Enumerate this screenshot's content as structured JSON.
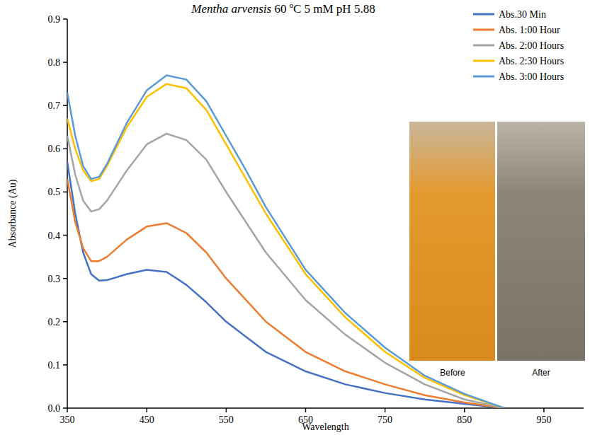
{
  "chart_data": {
    "type": "line",
    "title": "Mentha arvensis 60 ºC 5 mM pH 5.88",
    "x_label": "Wavelength",
    "y_label": "Absorbance (Au)",
    "annotations": [
      "Before",
      "After"
    ],
    "x": [
      350,
      360,
      370,
      380,
      390,
      400,
      425,
      450,
      475,
      500,
      525,
      550,
      575,
      600,
      650,
      700,
      750,
      800,
      850,
      900
    ],
    "series": [
      {
        "name": "Abs.30 Min",
        "color": "#4472c4",
        "values": [
          0.57,
          0.45,
          0.36,
          0.31,
          0.295,
          0.296,
          0.31,
          0.32,
          0.315,
          0.285,
          0.245,
          0.2,
          0.165,
          0.13,
          0.085,
          0.055,
          0.035,
          0.02,
          0.01,
          0
        ]
      },
      {
        "name": "Abs. 1:00 Hour",
        "color": "#ed7d31",
        "values": [
          0.53,
          0.43,
          0.37,
          0.34,
          0.34,
          0.35,
          0.39,
          0.42,
          0.428,
          0.405,
          0.36,
          0.3,
          0.25,
          0.2,
          0.13,
          0.085,
          0.055,
          0.03,
          0.013,
          0
        ]
      },
      {
        "name": "Abs. 2:00 Hours",
        "color": "#a5a5a5",
        "values": [
          0.63,
          0.54,
          0.48,
          0.455,
          0.46,
          0.48,
          0.55,
          0.61,
          0.635,
          0.62,
          0.575,
          0.5,
          0.43,
          0.36,
          0.25,
          0.17,
          0.105,
          0.055,
          0.02,
          0
        ]
      },
      {
        "name": "Abs. 2:30 Hours",
        "color": "#ffc000",
        "values": [
          0.67,
          0.6,
          0.55,
          0.525,
          0.53,
          0.56,
          0.65,
          0.72,
          0.75,
          0.74,
          0.69,
          0.61,
          0.53,
          0.45,
          0.31,
          0.21,
          0.13,
          0.07,
          0.03,
          0
        ]
      },
      {
        "name": "Abs. 3:00 Hours",
        "color": "#5b9bd5",
        "values": [
          0.73,
          0.63,
          0.56,
          0.53,
          0.535,
          0.565,
          0.66,
          0.735,
          0.77,
          0.76,
          0.71,
          0.63,
          0.55,
          0.465,
          0.32,
          0.22,
          0.14,
          0.075,
          0.033,
          0
        ]
      }
    ],
    "xlim": [
      350,
      1000
    ],
    "xticks": [
      350,
      450,
      550,
      650,
      750,
      850,
      950
    ],
    "ylim": [
      0,
      0.9
    ],
    "yticks": [
      {
        "value": 0,
        "label": "0.0"
      },
      0.1,
      0.2,
      0.3,
      0.4,
      0.5,
      0.6,
      0.7,
      0.8,
      0.9
    ],
    "grid": false,
    "legend": "top-right"
  }
}
